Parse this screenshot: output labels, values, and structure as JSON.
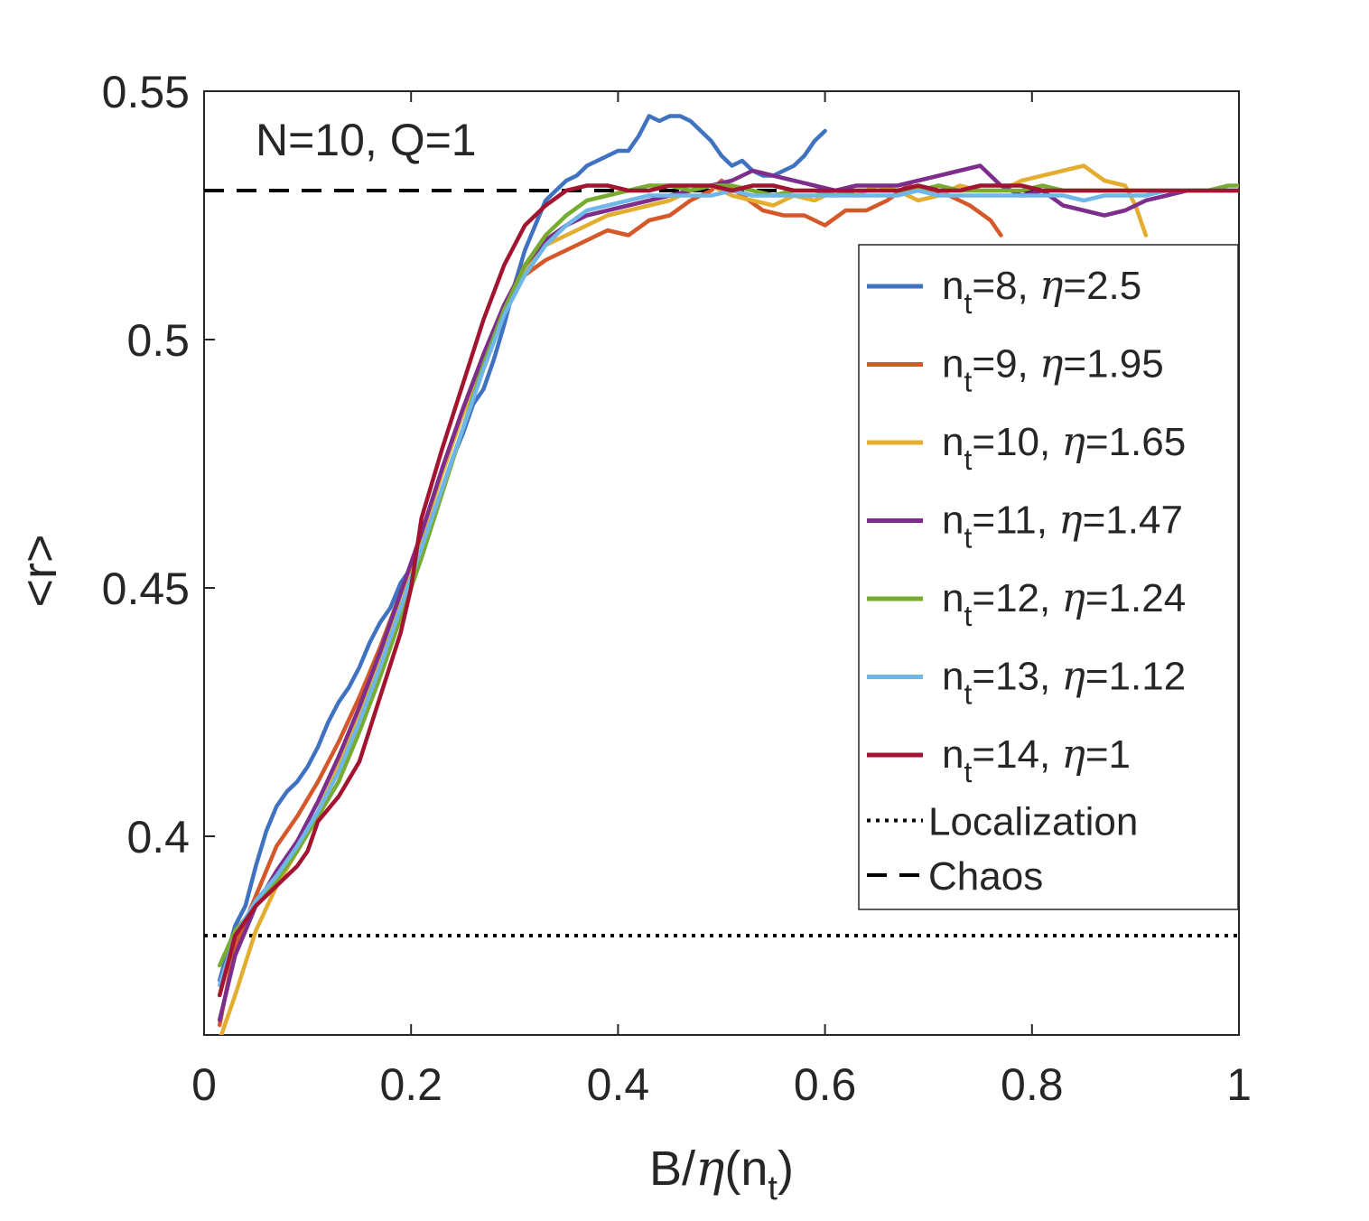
{
  "chart_data": {
    "type": "line",
    "title": "",
    "annotation": "N=10, Q=1",
    "xlabel": {
      "pre": "B/",
      "eta": "η",
      "mid": "(n",
      "sub": "t",
      "post": ")"
    },
    "ylabel": "<r>",
    "xlim": [
      0,
      1
    ],
    "ylim": [
      0.36,
      0.55
    ],
    "xticks": [
      0,
      0.2,
      0.4,
      0.6,
      0.8,
      1
    ],
    "xtick_labels": [
      "0",
      "0.2",
      "0.4",
      "0.6",
      "0.8",
      "1"
    ],
    "yticks": [
      0.4,
      0.45,
      0.5,
      0.55
    ],
    "ytick_labels": [
      "0.4",
      "0.45",
      "0.5",
      "0.55"
    ],
    "grid": false,
    "legend_position": "right",
    "series": [
      {
        "name": "n_t=8, η=2.5",
        "n": "8",
        "eta": "2.5",
        "color": "#3f72c0",
        "x": [
          0.015,
          0.03,
          0.04,
          0.05,
          0.06,
          0.07,
          0.08,
          0.09,
          0.1,
          0.11,
          0.12,
          0.13,
          0.14,
          0.15,
          0.16,
          0.17,
          0.18,
          0.19,
          0.2,
          0.21,
          0.22,
          0.23,
          0.24,
          0.25,
          0.26,
          0.27,
          0.28,
          0.29,
          0.3,
          0.31,
          0.32,
          0.33,
          0.34,
          0.35,
          0.36,
          0.37,
          0.38,
          0.39,
          0.4,
          0.41,
          0.42,
          0.43,
          0.44,
          0.45,
          0.46,
          0.47,
          0.48,
          0.49,
          0.5,
          0.51,
          0.52,
          0.53,
          0.54,
          0.55,
          0.56,
          0.57,
          0.58,
          0.59,
          0.6
        ],
        "y": [
          0.371,
          0.382,
          0.386,
          0.394,
          0.401,
          0.406,
          0.409,
          0.411,
          0.414,
          0.418,
          0.423,
          0.427,
          0.43,
          0.434,
          0.439,
          0.443,
          0.446,
          0.451,
          0.454,
          0.457,
          0.463,
          0.47,
          0.476,
          0.481,
          0.487,
          0.49,
          0.496,
          0.503,
          0.511,
          0.518,
          0.523,
          0.528,
          0.53,
          0.532,
          0.533,
          0.535,
          0.536,
          0.537,
          0.538,
          0.538,
          0.541,
          0.545,
          0.544,
          0.545,
          0.545,
          0.544,
          0.542,
          0.54,
          0.537,
          0.535,
          0.536,
          0.534,
          0.533,
          0.533,
          0.534,
          0.535,
          0.537,
          0.54,
          0.542
        ]
      },
      {
        "name": "n_t=9, η=1.95",
        "n": "9",
        "eta": "1.95",
        "color": "#d5582a",
        "x": [
          0.015,
          0.03,
          0.05,
          0.07,
          0.09,
          0.11,
          0.13,
          0.15,
          0.17,
          0.19,
          0.21,
          0.23,
          0.25,
          0.27,
          0.29,
          0.31,
          0.33,
          0.35,
          0.37,
          0.39,
          0.41,
          0.43,
          0.45,
          0.47,
          0.49,
          0.5,
          0.52,
          0.54,
          0.56,
          0.58,
          0.6,
          0.62,
          0.64,
          0.66,
          0.68,
          0.7,
          0.72,
          0.74,
          0.76,
          0.77
        ],
        "y": [
          0.362,
          0.378,
          0.388,
          0.398,
          0.404,
          0.411,
          0.419,
          0.428,
          0.438,
          0.449,
          0.461,
          0.474,
          0.486,
          0.497,
          0.507,
          0.513,
          0.516,
          0.518,
          0.52,
          0.522,
          0.521,
          0.524,
          0.525,
          0.528,
          0.53,
          0.532,
          0.529,
          0.526,
          0.525,
          0.525,
          0.523,
          0.526,
          0.526,
          0.528,
          0.531,
          0.53,
          0.529,
          0.527,
          0.524,
          0.521
        ]
      },
      {
        "name": "n_t=10, η=1.65",
        "n": "10",
        "eta": "1.65",
        "color": "#e3ad2f",
        "x": [
          0.015,
          0.03,
          0.05,
          0.07,
          0.09,
          0.11,
          0.13,
          0.15,
          0.17,
          0.19,
          0.21,
          0.23,
          0.25,
          0.27,
          0.29,
          0.31,
          0.33,
          0.35,
          0.37,
          0.39,
          0.41,
          0.43,
          0.45,
          0.47,
          0.49,
          0.51,
          0.53,
          0.55,
          0.57,
          0.59,
          0.61,
          0.63,
          0.65,
          0.67,
          0.69,
          0.71,
          0.73,
          0.75,
          0.77,
          0.79,
          0.81,
          0.83,
          0.85,
          0.87,
          0.89,
          0.9,
          0.91
        ],
        "y": [
          0.359,
          0.368,
          0.381,
          0.39,
          0.397,
          0.405,
          0.414,
          0.424,
          0.435,
          0.448,
          0.46,
          0.473,
          0.485,
          0.496,
          0.506,
          0.514,
          0.519,
          0.521,
          0.523,
          0.525,
          0.526,
          0.527,
          0.528,
          0.53,
          0.531,
          0.529,
          0.528,
          0.527,
          0.529,
          0.528,
          0.53,
          0.529,
          0.531,
          0.53,
          0.528,
          0.529,
          0.531,
          0.53,
          0.53,
          0.532,
          0.533,
          0.534,
          0.535,
          0.532,
          0.531,
          0.527,
          0.521
        ]
      },
      {
        "name": "n_t=11, η=1.47",
        "n": "11",
        "eta": "1.47",
        "color": "#7d2e8d",
        "x": [
          0.015,
          0.03,
          0.05,
          0.07,
          0.09,
          0.11,
          0.13,
          0.15,
          0.17,
          0.19,
          0.21,
          0.23,
          0.25,
          0.27,
          0.29,
          0.31,
          0.33,
          0.35,
          0.37,
          0.39,
          0.41,
          0.43,
          0.45,
          0.47,
          0.49,
          0.51,
          0.53,
          0.55,
          0.57,
          0.59,
          0.61,
          0.63,
          0.65,
          0.67,
          0.69,
          0.71,
          0.73,
          0.75,
          0.77,
          0.79,
          0.81,
          0.83,
          0.85,
          0.87,
          0.89,
          0.91,
          0.93,
          0.95,
          0.97,
          0.99,
          1.0
        ],
        "y": [
          0.363,
          0.376,
          0.386,
          0.393,
          0.399,
          0.407,
          0.416,
          0.426,
          0.437,
          0.449,
          0.461,
          0.474,
          0.486,
          0.497,
          0.507,
          0.515,
          0.52,
          0.523,
          0.525,
          0.526,
          0.527,
          0.528,
          0.529,
          0.53,
          0.531,
          0.532,
          0.534,
          0.533,
          0.532,
          0.531,
          0.53,
          0.531,
          0.531,
          0.531,
          0.532,
          0.533,
          0.534,
          0.535,
          0.531,
          0.529,
          0.53,
          0.527,
          0.526,
          0.525,
          0.526,
          0.528,
          0.529,
          0.53,
          0.53,
          0.53,
          0.53
        ]
      },
      {
        "name": "n_t=12, η=1.24",
        "n": "12",
        "eta": "1.24",
        "color": "#77ac30",
        "x": [
          0.015,
          0.03,
          0.05,
          0.07,
          0.09,
          0.11,
          0.13,
          0.15,
          0.17,
          0.19,
          0.21,
          0.23,
          0.25,
          0.27,
          0.29,
          0.31,
          0.33,
          0.35,
          0.37,
          0.39,
          0.41,
          0.43,
          0.45,
          0.47,
          0.49,
          0.51,
          0.53,
          0.55,
          0.57,
          0.59,
          0.61,
          0.63,
          0.65,
          0.67,
          0.69,
          0.71,
          0.73,
          0.75,
          0.77,
          0.79,
          0.81,
          0.83,
          0.85,
          0.87,
          0.89,
          0.91,
          0.93,
          0.95,
          0.97,
          0.99,
          1.0
        ],
        "y": [
          0.374,
          0.381,
          0.386,
          0.391,
          0.397,
          0.404,
          0.411,
          0.421,
          0.432,
          0.444,
          0.456,
          0.469,
          0.482,
          0.495,
          0.506,
          0.515,
          0.521,
          0.525,
          0.528,
          0.529,
          0.53,
          0.531,
          0.531,
          0.53,
          0.531,
          0.531,
          0.53,
          0.529,
          0.53,
          0.53,
          0.529,
          0.53,
          0.53,
          0.53,
          0.53,
          0.531,
          0.53,
          0.53,
          0.53,
          0.53,
          0.531,
          0.53,
          0.53,
          0.53,
          0.53,
          0.53,
          0.53,
          0.53,
          0.53,
          0.531,
          0.531
        ]
      },
      {
        "name": "n_t=13, η=1.12",
        "n": "13",
        "eta": "1.12",
        "color": "#6fb7e8",
        "x": [
          0.015,
          0.03,
          0.05,
          0.07,
          0.09,
          0.11,
          0.13,
          0.15,
          0.17,
          0.19,
          0.21,
          0.23,
          0.25,
          0.27,
          0.29,
          0.31,
          0.33,
          0.35,
          0.37,
          0.39,
          0.41,
          0.43,
          0.45,
          0.47,
          0.49,
          0.51,
          0.53,
          0.55,
          0.57,
          0.59,
          0.61,
          0.63,
          0.65,
          0.67,
          0.69,
          0.71,
          0.73,
          0.75,
          0.77,
          0.79,
          0.81,
          0.83,
          0.85,
          0.87,
          0.89,
          0.91,
          0.93,
          0.95,
          0.97,
          0.99,
          1.0
        ],
        "y": [
          0.37,
          0.38,
          0.387,
          0.392,
          0.398,
          0.405,
          0.413,
          0.423,
          0.434,
          0.446,
          0.458,
          0.47,
          0.482,
          0.494,
          0.505,
          0.513,
          0.519,
          0.523,
          0.526,
          0.527,
          0.528,
          0.529,
          0.529,
          0.529,
          0.529,
          0.53,
          0.529,
          0.529,
          0.529,
          0.529,
          0.529,
          0.529,
          0.529,
          0.529,
          0.53,
          0.529,
          0.529,
          0.529,
          0.529,
          0.529,
          0.529,
          0.529,
          0.528,
          0.529,
          0.529,
          0.529,
          0.53,
          0.53,
          0.53,
          0.53,
          0.53
        ]
      },
      {
        "name": "n_t=14, η=1",
        "n": "14",
        "eta": "1",
        "color": "#a2142f",
        "x": [
          0.015,
          0.03,
          0.05,
          0.07,
          0.09,
          0.1,
          0.11,
          0.13,
          0.15,
          0.17,
          0.19,
          0.2,
          0.21,
          0.23,
          0.25,
          0.27,
          0.29,
          0.3,
          0.31,
          0.33,
          0.35,
          0.37,
          0.39,
          0.41,
          0.43,
          0.45,
          0.47,
          0.49,
          0.51,
          0.53,
          0.55,
          0.57,
          0.59,
          0.61,
          0.63,
          0.65,
          0.67,
          0.69,
          0.71,
          0.73,
          0.75,
          0.77,
          0.79,
          0.81,
          0.83,
          0.85,
          0.87,
          0.89,
          0.91,
          0.93,
          0.95,
          0.97,
          0.99,
          1.0
        ],
        "y": [
          0.368,
          0.38,
          0.386,
          0.39,
          0.394,
          0.397,
          0.403,
          0.408,
          0.415,
          0.428,
          0.441,
          0.45,
          0.464,
          0.478,
          0.491,
          0.504,
          0.515,
          0.519,
          0.523,
          0.527,
          0.53,
          0.531,
          0.531,
          0.53,
          0.53,
          0.531,
          0.531,
          0.531,
          0.53,
          0.531,
          0.531,
          0.53,
          0.53,
          0.53,
          0.53,
          0.53,
          0.53,
          0.531,
          0.53,
          0.53,
          0.531,
          0.531,
          0.531,
          0.53,
          0.53,
          0.53,
          0.53,
          0.53,
          0.53,
          0.53,
          0.53,
          0.53,
          0.53,
          0.53
        ]
      }
    ],
    "reference_lines": [
      {
        "name": "Localization",
        "y": 0.38,
        "style": "dotted",
        "color": "#000000"
      },
      {
        "name": "Chaos",
        "y": 0.53,
        "style": "dashed",
        "color": "#000000"
      }
    ]
  }
}
